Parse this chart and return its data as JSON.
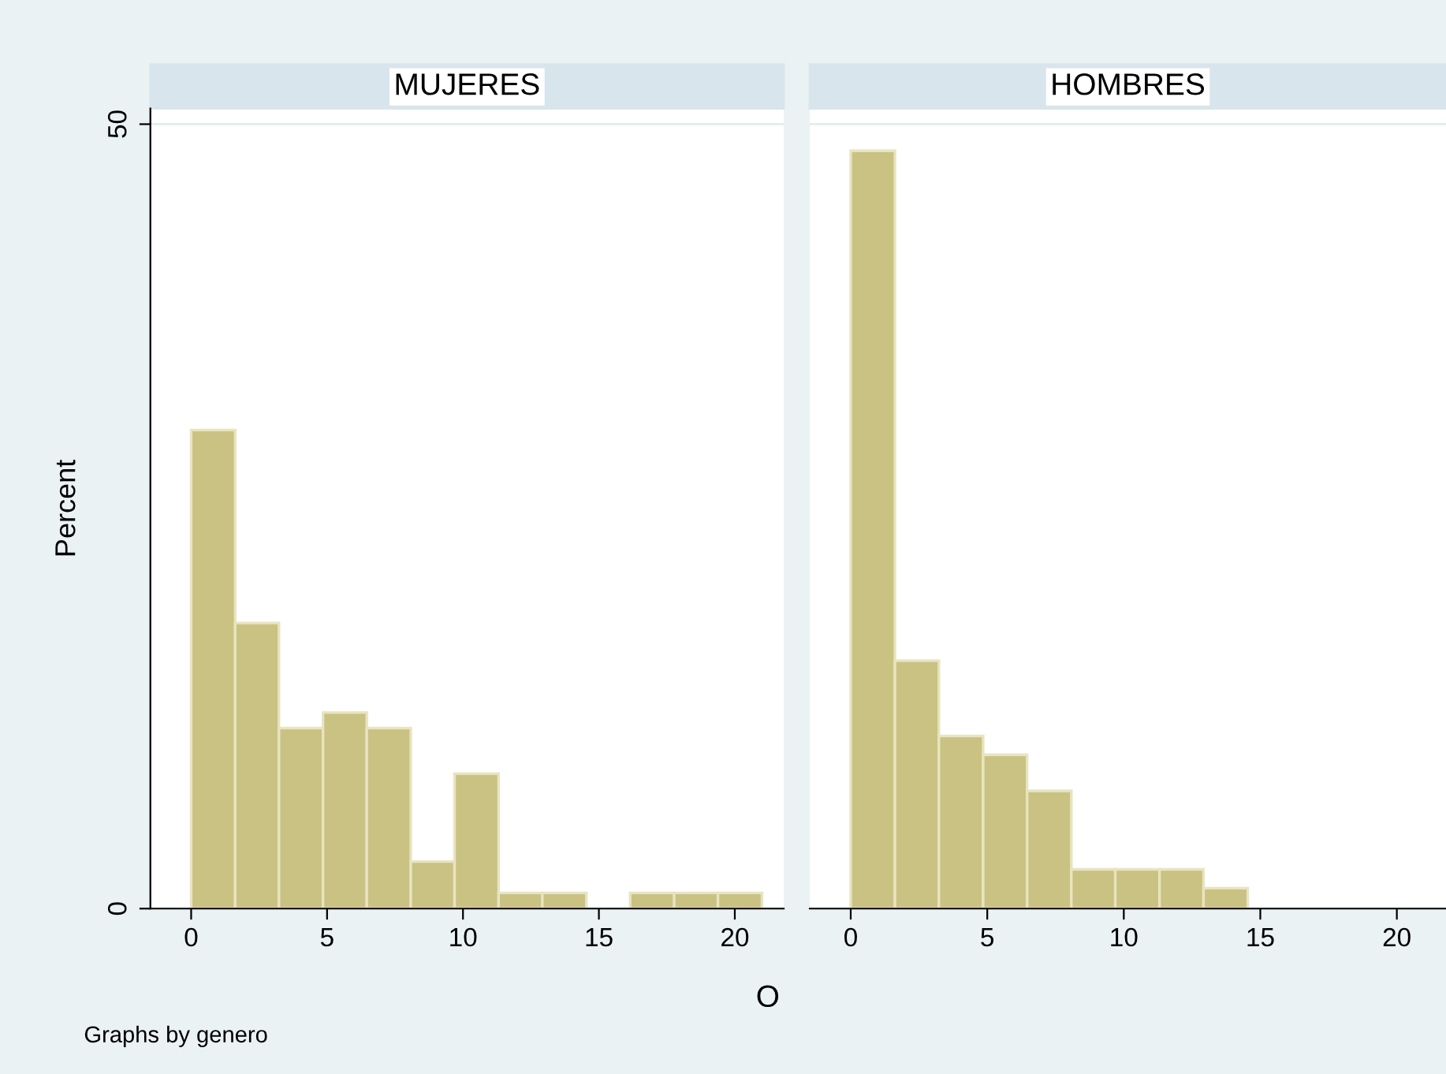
{
  "chart_data": [
    {
      "type": "histogram",
      "title": "MUJERES",
      "ylabel": "Percent",
      "xlabel": "O",
      "annotations": [
        "Graphs by genero"
      ],
      "color": "#c9c282",
      "bins": [
        0,
        1.62,
        3.23,
        4.85,
        6.46,
        8.08,
        9.69,
        11.31,
        12.92,
        14.54,
        16.15,
        17.77,
        19.38,
        21
      ],
      "values": [
        30.5,
        18.2,
        11.5,
        12.5,
        11.5,
        3.0,
        8.6,
        1.0,
        1.0,
        0,
        1.0,
        1.0,
        1.0
      ],
      "xlim": [
        -1.5,
        21.8
      ],
      "xticks": [
        0,
        5,
        10,
        15,
        20
      ],
      "ylim": [
        0,
        51
      ],
      "yticks": [
        0,
        50
      ],
      "grid": "y"
    },
    {
      "type": "histogram",
      "title": "HOMBRES",
      "color": "#c9c282",
      "bins": [
        0,
        1.62,
        3.23,
        4.85,
        6.46,
        8.08,
        9.69,
        11.31,
        12.92,
        14.54,
        16.15,
        17.77,
        19.38,
        21
      ],
      "values": [
        48.3,
        15.8,
        11.0,
        9.8,
        7.5,
        2.5,
        2.5,
        2.5,
        1.3,
        0,
        0,
        0,
        0
      ],
      "xlim": [
        -1.5,
        21.8
      ],
      "xticks": [
        0,
        5,
        10,
        15,
        20
      ],
      "ylim": [
        0,
        51
      ],
      "yticks": [
        0,
        50
      ],
      "grid": "y",
      "tick_labels": "x"
    }
  ]
}
